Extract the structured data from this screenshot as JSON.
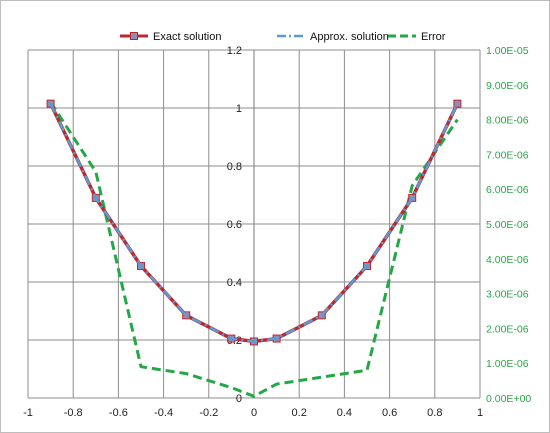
{
  "chart_data": {
    "type": "line",
    "title": "",
    "xlabel": "",
    "ylabel": "",
    "y2label": "",
    "xlim": [
      -1,
      1
    ],
    "ylim": [
      0,
      1.2
    ],
    "y2lim": [
      0,
      1e-05
    ],
    "x_ticks": [
      "-1",
      "-0.8",
      "-0.6",
      "-0.4",
      "-0.2",
      "0",
      "0.2",
      "0.4",
      "0.6",
      "0.8",
      "1"
    ],
    "y_ticks": [
      "0",
      "0.2",
      "0.4",
      "0.6",
      "0.8",
      "1",
      "1.2"
    ],
    "y2_ticks": [
      "0.00E+00",
      "1.00E-06",
      "2.00E-06",
      "3.00E-06",
      "4.00E-06",
      "5.00E-06",
      "6.00E-06",
      "7.00E-06",
      "8.00E-06",
      "9.00E-06",
      "1.00E-05"
    ],
    "grid": true,
    "legend_position": "top",
    "series": [
      {
        "name": "Exact solution",
        "axis": "left",
        "color": "#c0272d",
        "marker": "square",
        "x": [
          -0.9,
          -0.7,
          -0.5,
          -0.3,
          -0.1,
          0,
          0.1,
          0.3,
          0.5,
          0.7,
          0.9
        ],
        "y": [
          1.015,
          0.69,
          0.455,
          0.285,
          0.205,
          0.195,
          0.205,
          0.285,
          0.455,
          0.69,
          1.015
        ]
      },
      {
        "name": "Approx. solution",
        "axis": "left",
        "color": "#5b9bd5",
        "dash": "dash-dot",
        "x": [
          -0.9,
          -0.7,
          -0.5,
          -0.3,
          -0.1,
          0,
          0.1,
          0.3,
          0.5,
          0.7,
          0.9
        ],
        "y": [
          1.015,
          0.69,
          0.455,
          0.285,
          0.205,
          0.195,
          0.205,
          0.285,
          0.455,
          0.69,
          1.015
        ]
      },
      {
        "name": "Error",
        "axis": "right",
        "color": "#22a847",
        "dash": "dashed",
        "x": [
          -0.9,
          -0.7,
          -0.5,
          -0.3,
          -0.1,
          0,
          0.1,
          0.3,
          0.5,
          0.7,
          0.9
        ],
        "y": [
          8.5e-06,
          6.5e-06,
          9e-07,
          7e-07,
          3e-07,
          5e-08,
          4e-07,
          6e-07,
          8e-07,
          6.1e-06,
          8e-06
        ]
      }
    ]
  }
}
